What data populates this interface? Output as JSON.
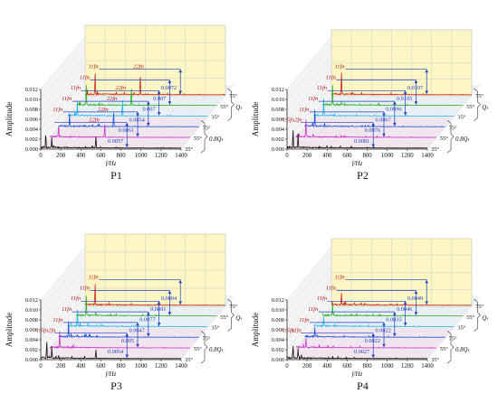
{
  "colors": {
    "wall": "#fbf6c4",
    "floor_low": "#f1e6ee",
    "floor_high": "#e8f0f6",
    "grid": "#cfcfcf",
    "arrow": "#1f3fbf",
    "series": [
      "#111111",
      "#cc33cc",
      "#2255dd",
      "#2bb6ee",
      "#33b020",
      "#cc2222"
    ]
  },
  "chart_data": [
    {
      "type": "line",
      "panel_label": "P1",
      "ylabel": "Amplitude",
      "xlabel": "f/Hz",
      "x_ticks": [
        0,
        200,
        400,
        600,
        800,
        1000,
        1200,
        1400
      ],
      "y_ticks": [
        "0.000",
        "0.002",
        "0.004",
        "0.006",
        "0.008",
        "0.010",
        "0.012"
      ],
      "xlim": [
        0,
        1400
      ],
      "ylim": [
        0,
        0.012
      ],
      "grid": true,
      "series": [
        {
          "name": "35°",
          "peaks": [
            [
              50,
              0.004
            ],
            [
              110,
              0.0026
            ],
            [
              550,
              0.0032
            ]
          ]
        },
        {
          "name": "55°",
          "peaks": [
            [
              90,
              0.0035
            ],
            [
              550,
              0.0035
            ]
          ]
        },
        {
          "name": "75°",
          "peaks": [
            [
              110,
              0.0032
            ],
            [
              550,
              0.0038
            ]
          ]
        },
        {
          "name": "35°",
          "peaks": [
            [
              100,
              0.0036
            ],
            [
              550,
              0.0042
            ]
          ]
        },
        {
          "name": "55°",
          "peaks": [
            [
              100,
              0.0048
            ],
            [
              550,
              0.0045
            ]
          ]
        },
        {
          "name": "75°",
          "peaks": [
            [
              100,
              0.005
            ],
            [
              550,
              0.0048
            ]
          ]
        }
      ],
      "group_labels": [
        "0.8Qₜ",
        "Qₜ"
      ],
      "peak_labels": [
        {
          "text": "22fn",
          "series": 0,
          "x": 550
        },
        {
          "text": "22fn",
          "series": 1,
          "x": 550
        },
        {
          "text": "22fn",
          "series": 2,
          "x": 550
        },
        {
          "text": "22fn",
          "series": 3,
          "x": 550
        },
        {
          "text": "22fn",
          "series": 5,
          "x": 550
        },
        {
          "text": "11fn",
          "series": 1,
          "x": 100
        },
        {
          "text": "11fn",
          "series": 2,
          "x": 100
        },
        {
          "text": "11fn",
          "series": 3,
          "x": 100
        },
        {
          "text": "11fn",
          "series": 4,
          "x": 100
        },
        {
          "text": "11fn",
          "series": 5,
          "x": 100
        }
      ],
      "annotations": [
        {
          "text": "0.0057",
          "series": 0
        },
        {
          "text": "0.0061",
          "series": 1
        },
        {
          "text": "0.0054",
          "series": 2
        },
        {
          "text": "0.007",
          "series": 3
        },
        {
          "text": "0.007",
          "series": 4
        },
        {
          "text": "0.0072",
          "series": 5
        }
      ]
    },
    {
      "type": "line",
      "panel_label": "P2",
      "ylabel": "Amplitude",
      "xlabel": "f/Hz",
      "x_ticks": [
        0,
        200,
        400,
        600,
        800,
        1000,
        1200,
        1400
      ],
      "y_ticks": [
        "0.000",
        "0.002",
        "0.004",
        "0.006",
        "0.008",
        "0.010",
        "0.012"
      ],
      "xlim": [
        0,
        1400
      ],
      "ylim": [
        0,
        0.012
      ],
      "grid": true,
      "series": [
        {
          "name": "35°",
          "peaks": [
            [
              60,
              0.0048
            ],
            [
              110,
              0.0035
            ]
          ]
        },
        {
          "name": "55°",
          "peaks": [
            [
              100,
              0.0042
            ]
          ]
        },
        {
          "name": "75°",
          "peaks": [
            [
              100,
              0.004
            ]
          ]
        },
        {
          "name": "35°",
          "peaks": [
            [
              100,
              0.0042
            ]
          ]
        },
        {
          "name": "55°",
          "peaks": [
            [
              100,
              0.0048
            ]
          ]
        },
        {
          "name": "75°",
          "peaks": [
            [
              100,
              0.0052
            ]
          ]
        }
      ],
      "group_labels": [
        "0.8Qₜ",
        "Qₜ"
      ],
      "peak_labels": [
        {
          "text": "1.5fn",
          "series": 0,
          "x": 30
        },
        {
          "text": "2fn",
          "series": 0,
          "x": 130
        },
        {
          "text": "11fn",
          "series": 1,
          "x": 100
        },
        {
          "text": "11fn",
          "series": 2,
          "x": 100
        },
        {
          "text": "11fn",
          "series": 3,
          "x": 100
        },
        {
          "text": "11fn",
          "series": 4,
          "x": 100
        },
        {
          "text": "11fn",
          "series": 5,
          "x": 100
        }
      ],
      "annotations": [
        {
          "text": "0.0081",
          "series": 0
        },
        {
          "text": "0.0076",
          "series": 1
        },
        {
          "text": "0.0067",
          "series": 2
        },
        {
          "text": "0.0096",
          "series": 3
        },
        {
          "text": "0.0105",
          "series": 4
        },
        {
          "text": "0.0107",
          "series": 5
        }
      ]
    },
    {
      "type": "line",
      "panel_label": "P3",
      "ylabel": "Amplitude",
      "xlabel": "f/Hz",
      "x_ticks": [
        0,
        200,
        400,
        600,
        800,
        1000,
        1200,
        1400
      ],
      "y_ticks": [
        "0.000",
        "0.002",
        "0.004",
        "0.006",
        "0.008",
        "0.010",
        "0.012"
      ],
      "xlim": [
        0,
        1400
      ],
      "ylim": [
        0,
        0.012
      ],
      "grid": true,
      "series": [
        {
          "name": "35°",
          "peaks": [
            [
              60,
              0.0045
            ],
            [
              110,
              0.003
            ],
            [
              550,
              0.0025
            ]
          ]
        },
        {
          "name": "55°",
          "peaks": [
            [
              100,
              0.004
            ]
          ]
        },
        {
          "name": "75°",
          "peaks": [
            [
              100,
              0.0038
            ]
          ]
        },
        {
          "name": "35°",
          "peaks": [
            [
              100,
              0.004
            ]
          ]
        },
        {
          "name": "55°",
          "peaks": [
            [
              100,
              0.0048
            ]
          ]
        },
        {
          "name": "75°",
          "peaks": [
            [
              100,
              0.005
            ]
          ]
        }
      ],
      "group_labels": [
        "0.8Qₜ",
        "Qₜ"
      ],
      "peak_labels": [
        {
          "text": "1.5fn",
          "series": 0,
          "x": 30
        },
        {
          "text": "2fn",
          "series": 0,
          "x": 130
        },
        {
          "text": "11fn",
          "series": 1,
          "x": 100
        },
        {
          "text": "11fn",
          "series": 2,
          "x": 100
        },
        {
          "text": "11fn",
          "series": 3,
          "x": 100
        },
        {
          "text": "11fn",
          "series": 4,
          "x": 100
        },
        {
          "text": "11fn",
          "series": 5,
          "x": 100
        }
      ],
      "annotations": [
        {
          "text": "0.0054",
          "series": 0
        },
        {
          "text": "0.005",
          "series": 1
        },
        {
          "text": "0.0047",
          "series": 2
        },
        {
          "text": "0.0077",
          "series": 3
        },
        {
          "text": "0.0091",
          "series": 4
        },
        {
          "text": "0.0094",
          "series": 5
        }
      ]
    },
    {
      "type": "line",
      "panel_label": "P4",
      "ylabel": "Amplitude",
      "xlabel": "f/Hz",
      "x_ticks": [
        0,
        200,
        400,
        600,
        800,
        1000,
        1200,
        1400
      ],
      "y_ticks": [
        "0.000",
        "0.002",
        "0.004",
        "0.006",
        "0.008",
        "0.010",
        "0.012"
      ],
      "xlim": [
        0,
        1400
      ],
      "ylim": [
        0,
        0.012
      ],
      "grid": true,
      "series": [
        {
          "name": "35°",
          "peaks": [
            [
              60,
              0.0035
            ],
            [
              110,
              0.0025
            ]
          ]
        },
        {
          "name": "55°",
          "peaks": [
            [
              100,
              0.0025
            ]
          ]
        },
        {
          "name": "75°",
          "peaks": [
            [
              100,
              0.0025
            ]
          ]
        },
        {
          "name": "35°",
          "peaks": [
            [
              100,
              0.0025
            ]
          ]
        },
        {
          "name": "55°",
          "peaks": [
            [
              100,
              0.0028
            ]
          ]
        },
        {
          "name": "75°",
          "peaks": [
            [
              100,
              0.003
            ]
          ]
        }
      ],
      "group_labels": [
        "0.8Qₜ",
        "Qₜ"
      ],
      "peak_labels": [
        {
          "text": "1.5fn",
          "series": 0,
          "x": 30
        },
        {
          "text": "11fn",
          "series": 0,
          "x": 110
        },
        {
          "text": "11fn",
          "series": 1,
          "x": 100
        },
        {
          "text": "11fn",
          "series": 2,
          "x": 100
        },
        {
          "text": "11fn",
          "series": 3,
          "x": 100
        },
        {
          "text": "11fn",
          "series": 4,
          "x": 100
        },
        {
          "text": "11fn",
          "series": 5,
          "x": 100
        }
      ],
      "annotations": [
        {
          "text": "0.0027",
          "series": 0
        },
        {
          "text": "0.0022",
          "series": 1
        },
        {
          "text": "0.0022",
          "series": 2
        },
        {
          "text": "0.0035",
          "series": 3
        },
        {
          "text": "0.0046",
          "series": 4
        },
        {
          "text": "0.0049",
          "series": 5
        }
      ]
    }
  ]
}
